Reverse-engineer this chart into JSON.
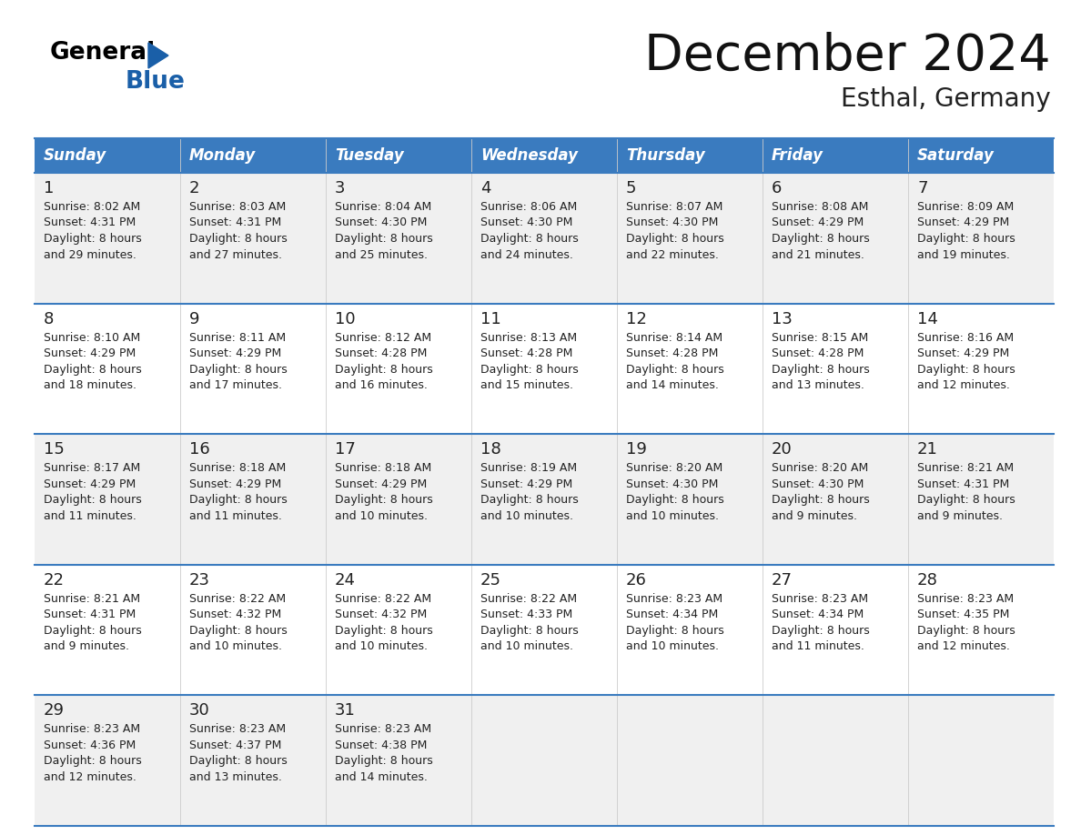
{
  "title": "December 2024",
  "subtitle": "Esthal, Germany",
  "header_bg": "#3a7bbf",
  "header_text": "#ffffff",
  "row_bg_even": "#f0f0f0",
  "row_bg_odd": "#ffffff",
  "day_names": [
    "Sunday",
    "Monday",
    "Tuesday",
    "Wednesday",
    "Thursday",
    "Friday",
    "Saturday"
  ],
  "weeks": [
    [
      {
        "day": 1,
        "sunrise": "8:02 AM",
        "sunset": "4:31 PM",
        "daylight": "8 hours and 29 minutes."
      },
      {
        "day": 2,
        "sunrise": "8:03 AM",
        "sunset": "4:31 PM",
        "daylight": "8 hours and 27 minutes."
      },
      {
        "day": 3,
        "sunrise": "8:04 AM",
        "sunset": "4:30 PM",
        "daylight": "8 hours and 25 minutes."
      },
      {
        "day": 4,
        "sunrise": "8:06 AM",
        "sunset": "4:30 PM",
        "daylight": "8 hours and 24 minutes."
      },
      {
        "day": 5,
        "sunrise": "8:07 AM",
        "sunset": "4:30 PM",
        "daylight": "8 hours and 22 minutes."
      },
      {
        "day": 6,
        "sunrise": "8:08 AM",
        "sunset": "4:29 PM",
        "daylight": "8 hours and 21 minutes."
      },
      {
        "day": 7,
        "sunrise": "8:09 AM",
        "sunset": "4:29 PM",
        "daylight": "8 hours and 19 minutes."
      }
    ],
    [
      {
        "day": 8,
        "sunrise": "8:10 AM",
        "sunset": "4:29 PM",
        "daylight": "8 hours and 18 minutes."
      },
      {
        "day": 9,
        "sunrise": "8:11 AM",
        "sunset": "4:29 PM",
        "daylight": "8 hours and 17 minutes."
      },
      {
        "day": 10,
        "sunrise": "8:12 AM",
        "sunset": "4:28 PM",
        "daylight": "8 hours and 16 minutes."
      },
      {
        "day": 11,
        "sunrise": "8:13 AM",
        "sunset": "4:28 PM",
        "daylight": "8 hours and 15 minutes."
      },
      {
        "day": 12,
        "sunrise": "8:14 AM",
        "sunset": "4:28 PM",
        "daylight": "8 hours and 14 minutes."
      },
      {
        "day": 13,
        "sunrise": "8:15 AM",
        "sunset": "4:28 PM",
        "daylight": "8 hours and 13 minutes."
      },
      {
        "day": 14,
        "sunrise": "8:16 AM",
        "sunset": "4:29 PM",
        "daylight": "8 hours and 12 minutes."
      }
    ],
    [
      {
        "day": 15,
        "sunrise": "8:17 AM",
        "sunset": "4:29 PM",
        "daylight": "8 hours and 11 minutes."
      },
      {
        "day": 16,
        "sunrise": "8:18 AM",
        "sunset": "4:29 PM",
        "daylight": "8 hours and 11 minutes."
      },
      {
        "day": 17,
        "sunrise": "8:18 AM",
        "sunset": "4:29 PM",
        "daylight": "8 hours and 10 minutes."
      },
      {
        "day": 18,
        "sunrise": "8:19 AM",
        "sunset": "4:29 PM",
        "daylight": "8 hours and 10 minutes."
      },
      {
        "day": 19,
        "sunrise": "8:20 AM",
        "sunset": "4:30 PM",
        "daylight": "8 hours and 10 minutes."
      },
      {
        "day": 20,
        "sunrise": "8:20 AM",
        "sunset": "4:30 PM",
        "daylight": "8 hours and 9 minutes."
      },
      {
        "day": 21,
        "sunrise": "8:21 AM",
        "sunset": "4:31 PM",
        "daylight": "8 hours and 9 minutes."
      }
    ],
    [
      {
        "day": 22,
        "sunrise": "8:21 AM",
        "sunset": "4:31 PM",
        "daylight": "8 hours and 9 minutes."
      },
      {
        "day": 23,
        "sunrise": "8:22 AM",
        "sunset": "4:32 PM",
        "daylight": "8 hours and 10 minutes."
      },
      {
        "day": 24,
        "sunrise": "8:22 AM",
        "sunset": "4:32 PM",
        "daylight": "8 hours and 10 minutes."
      },
      {
        "day": 25,
        "sunrise": "8:22 AM",
        "sunset": "4:33 PM",
        "daylight": "8 hours and 10 minutes."
      },
      {
        "day": 26,
        "sunrise": "8:23 AM",
        "sunset": "4:34 PM",
        "daylight": "8 hours and 10 minutes."
      },
      {
        "day": 27,
        "sunrise": "8:23 AM",
        "sunset": "4:34 PM",
        "daylight": "8 hours and 11 minutes."
      },
      {
        "day": 28,
        "sunrise": "8:23 AM",
        "sunset": "4:35 PM",
        "daylight": "8 hours and 12 minutes."
      }
    ],
    [
      {
        "day": 29,
        "sunrise": "8:23 AM",
        "sunset": "4:36 PM",
        "daylight": "8 hours and 12 minutes."
      },
      {
        "day": 30,
        "sunrise": "8:23 AM",
        "sunset": "4:37 PM",
        "daylight": "8 hours and 13 minutes."
      },
      {
        "day": 31,
        "sunrise": "8:23 AM",
        "sunset": "4:38 PM",
        "daylight": "8 hours and 14 minutes."
      },
      null,
      null,
      null,
      null
    ]
  ],
  "grid_color": "#3a7bbf",
  "separator_color": "#3a7bbf",
  "text_color": "#222222",
  "n_cols": 7,
  "n_weeks": 5,
  "fig_width": 11.88,
  "fig_height": 9.18,
  "dpi": 100
}
